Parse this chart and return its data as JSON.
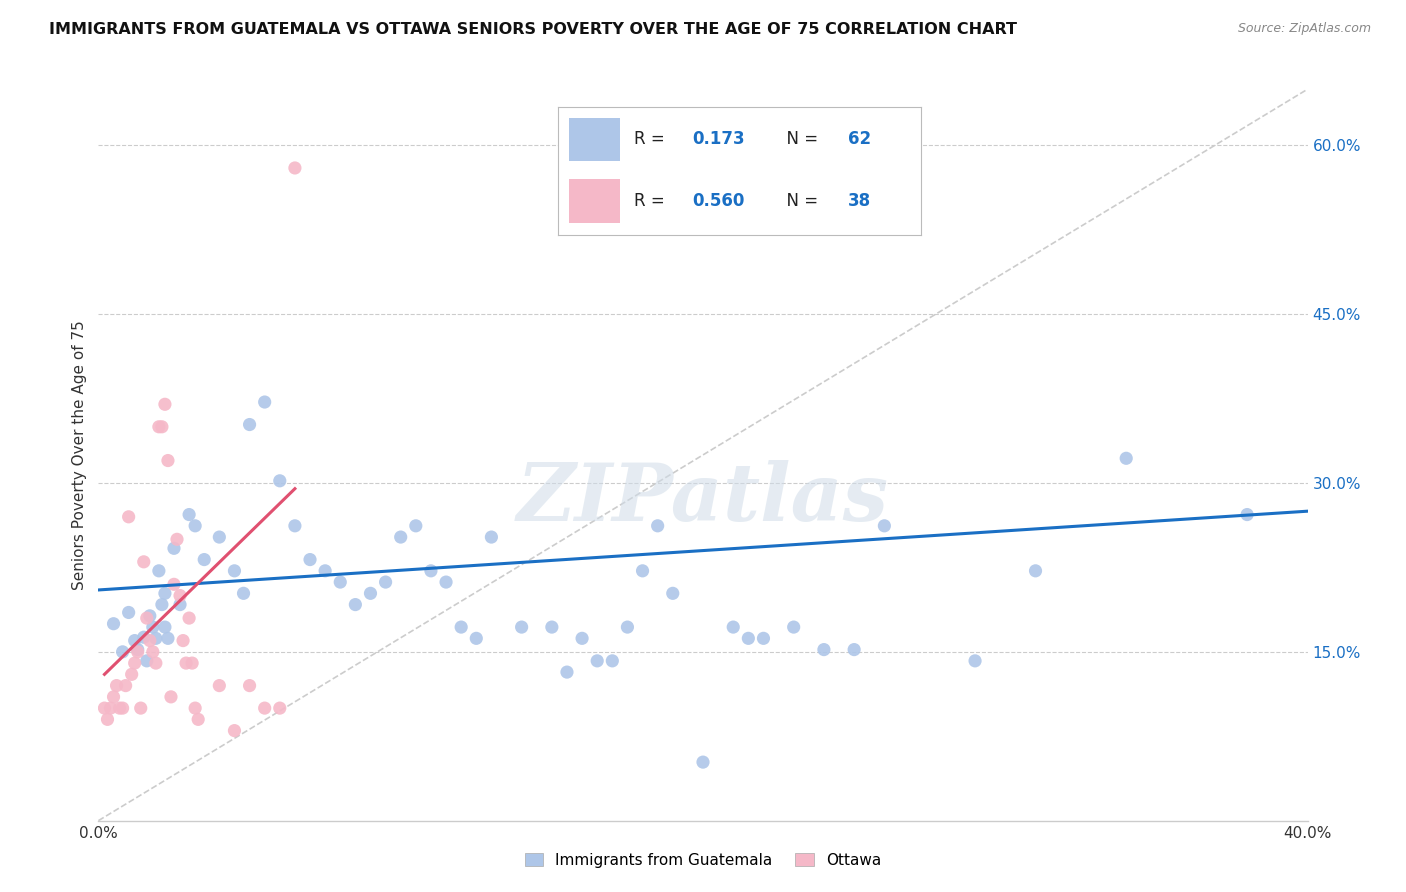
{
  "title": "IMMIGRANTS FROM GUATEMALA VS OTTAWA SENIORS POVERTY OVER THE AGE OF 75 CORRELATION CHART",
  "source": "Source: ZipAtlas.com",
  "ylabel": "Seniors Poverty Over the Age of 75",
  "xlim": [
    0.0,
    0.4
  ],
  "ylim": [
    0.0,
    0.65
  ],
  "x_ticks": [
    0.0,
    0.1,
    0.2,
    0.3,
    0.4
  ],
  "x_tick_labels": [
    "0.0%",
    "",
    "",
    "",
    "40.0%"
  ],
  "y_ticks_right": [
    0.15,
    0.3,
    0.45,
    0.6
  ],
  "y_tick_labels_right": [
    "15.0%",
    "30.0%",
    "45.0%",
    "60.0%"
  ],
  "R_blue": "0.173",
  "N_blue": "62",
  "R_pink": "0.560",
  "N_pink": "38",
  "blue_color": "#aec6e8",
  "pink_color": "#f5b8c8",
  "blue_line_color": "#1a6fc4",
  "pink_line_color": "#e05070",
  "diagonal_line_color": "#cccccc",
  "watermark": "ZIPatlas",
  "label_color": "#1a6fc4",
  "blue_scatter_x": [
    0.005,
    0.008,
    0.01,
    0.012,
    0.013,
    0.015,
    0.016,
    0.017,
    0.018,
    0.019,
    0.02,
    0.021,
    0.022,
    0.022,
    0.023,
    0.025,
    0.027,
    0.03,
    0.032,
    0.035,
    0.04,
    0.045,
    0.048,
    0.05,
    0.055,
    0.06,
    0.065,
    0.07,
    0.075,
    0.08,
    0.085,
    0.09,
    0.095,
    0.1,
    0.105,
    0.11,
    0.115,
    0.12,
    0.125,
    0.13,
    0.14,
    0.15,
    0.155,
    0.16,
    0.165,
    0.17,
    0.175,
    0.18,
    0.185,
    0.19,
    0.2,
    0.21,
    0.215,
    0.22,
    0.23,
    0.24,
    0.25,
    0.26,
    0.29,
    0.31,
    0.34,
    0.38
  ],
  "blue_scatter_y": [
    0.175,
    0.15,
    0.185,
    0.16,
    0.152,
    0.163,
    0.142,
    0.182,
    0.172,
    0.162,
    0.222,
    0.192,
    0.202,
    0.172,
    0.162,
    0.242,
    0.192,
    0.272,
    0.262,
    0.232,
    0.252,
    0.222,
    0.202,
    0.352,
    0.372,
    0.302,
    0.262,
    0.232,
    0.222,
    0.212,
    0.192,
    0.202,
    0.212,
    0.252,
    0.262,
    0.222,
    0.212,
    0.172,
    0.162,
    0.252,
    0.172,
    0.172,
    0.132,
    0.162,
    0.142,
    0.142,
    0.172,
    0.222,
    0.262,
    0.202,
    0.052,
    0.172,
    0.162,
    0.162,
    0.172,
    0.152,
    0.152,
    0.262,
    0.142,
    0.222,
    0.322,
    0.272
  ],
  "pink_scatter_x": [
    0.002,
    0.003,
    0.004,
    0.005,
    0.006,
    0.007,
    0.008,
    0.009,
    0.01,
    0.011,
    0.012,
    0.013,
    0.014,
    0.015,
    0.016,
    0.017,
    0.018,
    0.019,
    0.02,
    0.021,
    0.022,
    0.023,
    0.024,
    0.025,
    0.026,
    0.027,
    0.028,
    0.029,
    0.03,
    0.031,
    0.032,
    0.033,
    0.04,
    0.045,
    0.05,
    0.055,
    0.06,
    0.065
  ],
  "pink_scatter_y": [
    0.1,
    0.09,
    0.1,
    0.11,
    0.12,
    0.1,
    0.1,
    0.12,
    0.27,
    0.13,
    0.14,
    0.15,
    0.1,
    0.23,
    0.18,
    0.16,
    0.15,
    0.14,
    0.35,
    0.35,
    0.37,
    0.32,
    0.11,
    0.21,
    0.25,
    0.2,
    0.16,
    0.14,
    0.18,
    0.14,
    0.1,
    0.09,
    0.12,
    0.08,
    0.12,
    0.1,
    0.1,
    0.58
  ],
  "blue_line_x": [
    0.0,
    0.4
  ],
  "blue_line_y": [
    0.205,
    0.275
  ],
  "pink_line_x": [
    0.002,
    0.065
  ],
  "pink_line_y": [
    0.13,
    0.295
  ],
  "diag_line_x": [
    0.0,
    0.4
  ],
  "diag_line_y": [
    0.0,
    0.65
  ]
}
